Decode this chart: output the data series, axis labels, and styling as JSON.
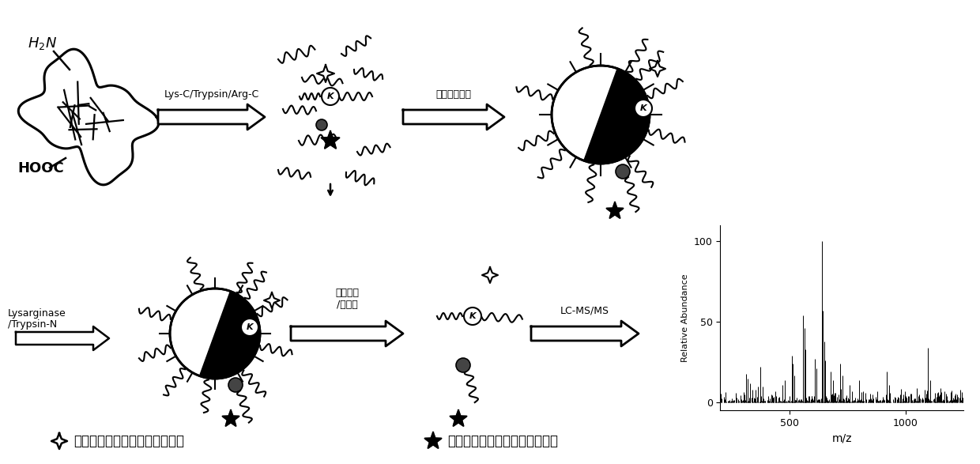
{
  "bg_color": "#ffffff",
  "fig_width": 12.4,
  "fig_height": 5.87,
  "dpi": 100,
  "arrow_label1": "Lys-C/Trypsin/Arg-C",
  "arrow_label2": "氨基活性材料",
  "arrow_label3": "Lysarginase\n/Trypsin-N",
  "arrow_label4": "亲和色谱\n/分子筛",
  "arrow_label5": "LC-MS/MS",
  "legend_text1": "赖氨酸二甲基化或三甲基化修饰",
  "legend_text2": "精氨酸单甲基化或而甲基化修饰",
  "ms_xlabel": "m/z",
  "ms_ylabel": "Relative Abundance",
  "ms_yticks": [
    0,
    50,
    100
  ],
  "ms_xticks": [
    500,
    1000
  ],
  "ms_xlim": [
    200,
    1250
  ],
  "ms_ylim": [
    -5,
    110
  ]
}
